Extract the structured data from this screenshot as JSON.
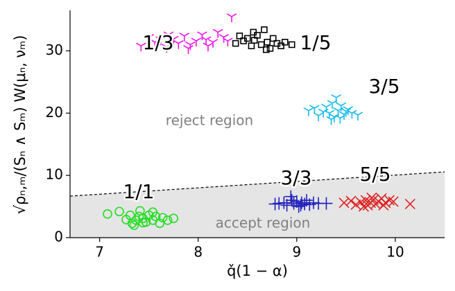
{
  "chart_data": {
    "type": "scatter",
    "xlabel": "q̌(1 − α)",
    "ylabel": "√ρₙ,ₘ/(Sₙ ∧ Sₘ) W(μₙ, νₘ)",
    "xlim": [
      6.7,
      10.5
    ],
    "ylim": [
      0,
      36.5
    ],
    "xticks": [
      7,
      8,
      9,
      10
    ],
    "yticks": [
      0,
      10,
      20,
      30
    ],
    "threshold": {
      "x": [
        6.7,
        10.5
      ],
      "values": [
        6.67,
        10.56
      ],
      "color": "#000000",
      "fill": "#e5e5e5"
    },
    "regions": [
      "reject region",
      "accept region"
    ],
    "series": [
      {
        "name": "1/1",
        "color": "#22dd22",
        "marker": "circle",
        "x": [
          7.08,
          7.2,
          7.27,
          7.31,
          7.33,
          7.37,
          7.4,
          7.41,
          7.44,
          7.47,
          7.5,
          7.54,
          7.57,
          7.61,
          7.64,
          7.69,
          7.75,
          7.35,
          7.44,
          7.54
        ],
        "values": [
          3.8,
          4.2,
          2.9,
          3.6,
          2.3,
          2.8,
          3.4,
          4.3,
          3.1,
          2.5,
          3.6,
          4.1,
          3.4,
          2.3,
          3.2,
          2.8,
          3.1,
          2.0,
          2.4,
          2.8
        ]
      },
      {
        "name": "3/3",
        "color": "#2222bb",
        "marker": "plus",
        "x": [
          8.78,
          8.82,
          8.87,
          8.9,
          8.94,
          8.97,
          9.0,
          9.02,
          9.05,
          9.08,
          9.1,
          9.13,
          9.17,
          9.22,
          9.3,
          8.95,
          9.04
        ],
        "values": [
          5.4,
          5.5,
          5.6,
          5.2,
          6.6,
          5.5,
          5.8,
          5.0,
          5.6,
          5.4,
          6.0,
          5.3,
          5.6,
          5.5,
          5.5,
          6.0,
          5.2
        ]
      },
      {
        "name": "5/5",
        "color": "#dd2222",
        "marker": "x",
        "x": [
          9.48,
          9.55,
          9.6,
          9.65,
          9.7,
          9.72,
          9.75,
          9.78,
          9.8,
          9.83,
          9.86,
          9.9,
          9.94,
          9.98,
          10.15,
          9.68,
          9.76,
          9.88
        ],
        "values": [
          5.6,
          5.9,
          5.3,
          5.7,
          6.0,
          5.2,
          5.6,
          6.1,
          5.4,
          5.8,
          6.3,
          5.6,
          6.0,
          5.8,
          5.4,
          5.0,
          6.4,
          5.2
        ]
      },
      {
        "name": "3/5",
        "color": "#11bbee",
        "marker": "tri_down",
        "x": [
          9.12,
          9.18,
          9.22,
          9.27,
          9.3,
          9.33,
          9.36,
          9.38,
          9.4,
          9.42,
          9.45,
          9.48,
          9.52,
          9.56,
          9.62,
          9.35,
          9.44,
          9.5
        ],
        "values": [
          20.4,
          20.8,
          19.6,
          20.2,
          21.0,
          20.0,
          21.6,
          19.4,
          22.5,
          20.4,
          21.2,
          19.8,
          20.6,
          20.0,
          19.7,
          19.0,
          19.2,
          20.3
        ]
      },
      {
        "name": "1/3",
        "color": "#ee11ee",
        "marker": "tri_down",
        "x": [
          7.42,
          7.5,
          7.56,
          7.62,
          7.68,
          7.75,
          7.8,
          7.86,
          7.92,
          7.98,
          8.04,
          8.1,
          8.15,
          8.2,
          8.26,
          8.3,
          8.34,
          7.7,
          7.9,
          8.08
        ],
        "values": [
          30.8,
          32.2,
          31.4,
          31.8,
          30.6,
          31.9,
          31.2,
          32.4,
          31.0,
          31.6,
          32.6,
          30.8,
          31.4,
          33.0,
          32.2,
          31.6,
          35.5,
          32.6,
          30.4,
          31.8
        ]
      },
      {
        "name": "1/5",
        "color": "#000000",
        "marker": "square",
        "x": [
          8.38,
          8.42,
          8.46,
          8.5,
          8.54,
          8.57,
          8.6,
          8.64,
          8.67,
          8.7,
          8.73,
          8.76,
          8.8,
          8.84,
          8.88,
          8.95,
          8.56,
          8.69
        ],
        "values": [
          31.2,
          32.4,
          31.6,
          32.0,
          30.8,
          31.7,
          32.5,
          31.0,
          33.4,
          31.4,
          30.4,
          32.0,
          31.2,
          30.8,
          31.4,
          31.0,
          33.0,
          30.2
        ]
      }
    ]
  }
}
